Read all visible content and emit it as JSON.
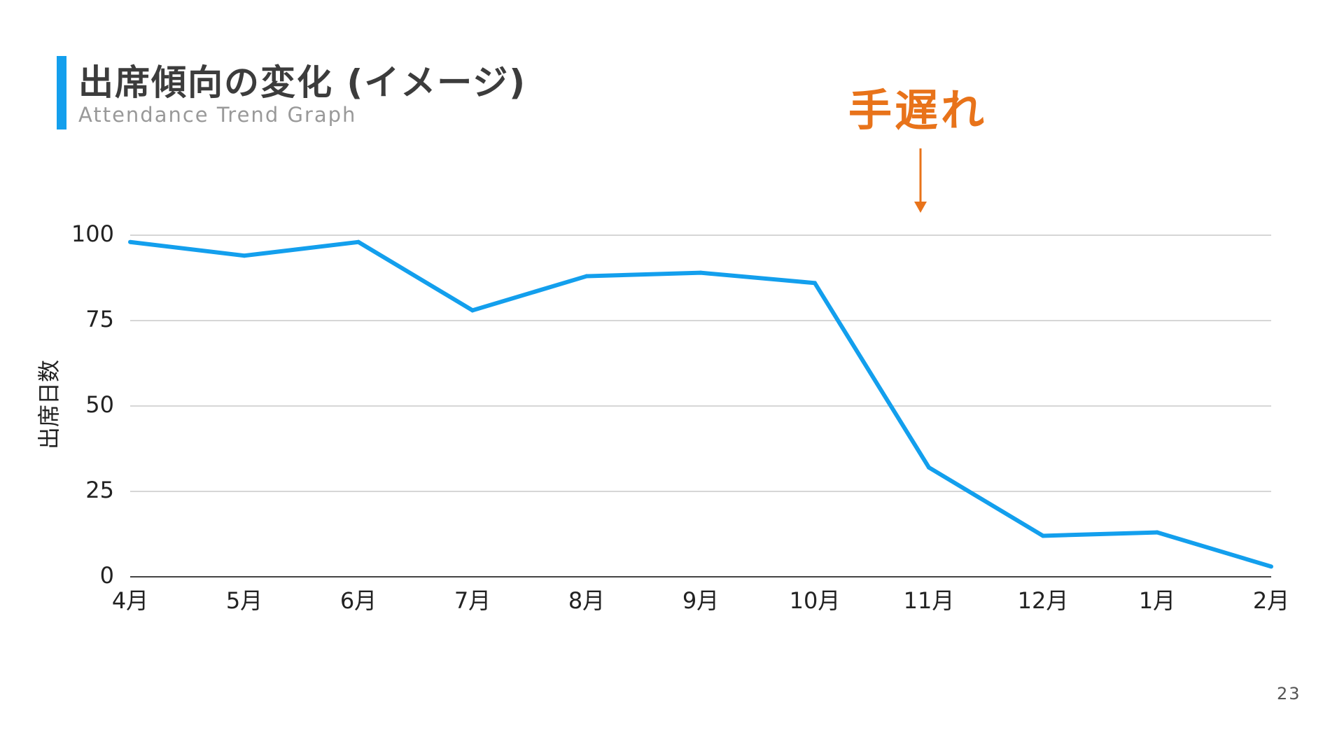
{
  "page": {
    "title": "出席傾向の変化 (イメージ)",
    "subtitle": "Attendance Trend Graph",
    "annotation": "手遅れ",
    "page_number": "23"
  },
  "colors": {
    "accent": "#139fed",
    "line": "#139fed",
    "annotation": "#e8731a",
    "grid": "#c8c8c8",
    "axis": "#444444"
  },
  "chart_data": {
    "type": "line",
    "title": "",
    "xlabel": "",
    "ylabel": "出席日数",
    "categories": [
      "4月",
      "5月",
      "6月",
      "7月",
      "8月",
      "9月",
      "10月",
      "11月",
      "12月",
      "1月",
      "2月"
    ],
    "series": [
      {
        "values": [
          98,
          94,
          98,
          78,
          88,
          89,
          86,
          32,
          12,
          13,
          3
        ]
      }
    ],
    "ylim": [
      0,
      100
    ],
    "yticks": [
      0,
      25,
      50,
      75,
      100
    ],
    "grid": true,
    "legend": "none",
    "annotation": {
      "text": "手遅れ",
      "category": "11月",
      "marker": "down-arrow"
    }
  }
}
